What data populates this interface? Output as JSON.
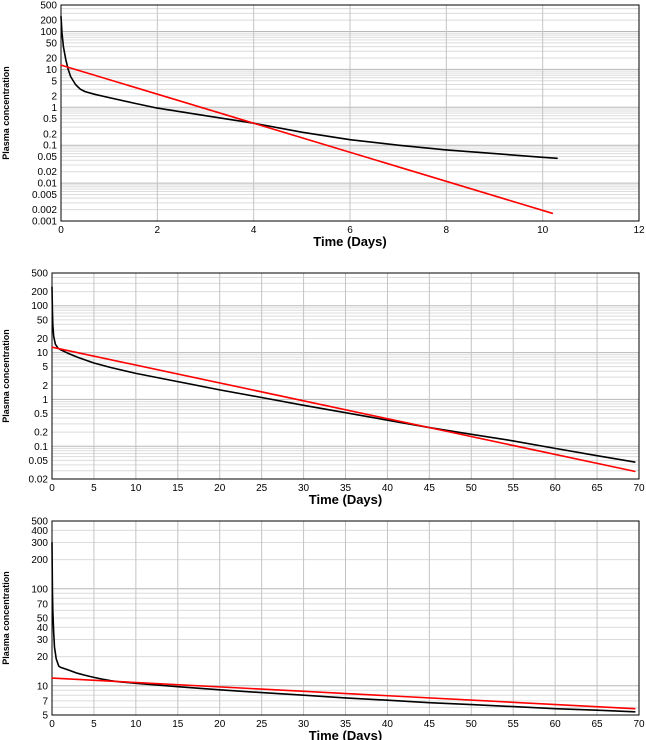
{
  "chart_data": [
    {
      "type": "line",
      "xlabel": "Time  (Days)",
      "ylabel": "Plasma concentration",
      "xlim": [
        0,
        12
      ],
      "ylim": [
        0.001,
        500
      ],
      "yscale": "log",
      "grid": true,
      "legend": "none",
      "x_ticks": [
        "0",
        "2",
        "4",
        "6",
        "8",
        "10",
        "12"
      ],
      "y_ticks": [
        "0.001",
        "0.002",
        "0.005",
        "0.01",
        "0.02",
        "0.05",
        "0.1",
        "0.2",
        "0.5",
        "1",
        "2",
        "5",
        "10",
        "20",
        "50",
        "100",
        "200",
        "500"
      ],
      "series": [
        {
          "color": "#000000",
          "x": [
            0.0,
            0.02,
            0.05,
            0.1,
            0.15,
            0.2,
            0.3,
            0.4,
            0.5,
            0.7,
            1.0,
            1.5,
            2.0,
            3.0,
            4.0,
            5.0,
            6.0,
            7.0,
            8.0,
            9.0,
            10.0,
            10.3
          ],
          "y": [
            250,
            90,
            40,
            18,
            10,
            6.5,
            4.0,
            3.0,
            2.6,
            2.2,
            1.8,
            1.3,
            0.95,
            0.6,
            0.38,
            0.22,
            0.14,
            0.1,
            0.075,
            0.06,
            0.048,
            0.045
          ]
        },
        {
          "color": "#ff0000",
          "x": [
            0.0,
            10.2
          ],
          "y": [
            13,
            0.0016
          ]
        }
      ]
    },
    {
      "type": "line",
      "xlabel": "Time  (Days)",
      "ylabel": "Plasma concentration",
      "xlim": [
        0,
        70
      ],
      "ylim": [
        0.02,
        500
      ],
      "yscale": "log",
      "grid": true,
      "legend": "none",
      "x_ticks": [
        "0",
        "5",
        "10",
        "15",
        "20",
        "25",
        "30",
        "35",
        "40",
        "45",
        "50",
        "55",
        "60",
        "65",
        "70"
      ],
      "y_ticks": [
        "0.02",
        "0.05",
        "0.1",
        "0.2",
        "0.5",
        "1",
        "2",
        "5",
        "10",
        "20",
        "50",
        "100",
        "200",
        "500"
      ],
      "series": [
        {
          "color": "#000000",
          "x": [
            0.0,
            0.05,
            0.1,
            0.2,
            0.4,
            0.7,
            1.0,
            2.0,
            3.0,
            5.0,
            7.0,
            10.0,
            15.0,
            20.0,
            25.0,
            30.0,
            35.0,
            40.0,
            45.0,
            50.0,
            55.0,
            60.0,
            65.0,
            69.5
          ],
          "y": [
            250,
            80,
            40,
            22,
            15,
            12.5,
            11.5,
            9.5,
            8.0,
            6.0,
            4.8,
            3.6,
            2.4,
            1.6,
            1.1,
            0.75,
            0.52,
            0.36,
            0.25,
            0.18,
            0.13,
            0.09,
            0.063,
            0.046
          ]
        },
        {
          "color": "#ff0000",
          "x": [
            0.0,
            69.5
          ],
          "y": [
            13,
            0.029
          ]
        }
      ]
    },
    {
      "type": "line",
      "xlabel": "Time  (Days)",
      "ylabel": "Plasma concentration",
      "xlim": [
        0,
        70
      ],
      "ylim": [
        5,
        500
      ],
      "yscale": "log",
      "grid": true,
      "legend": "none",
      "x_ticks": [
        "0",
        "5",
        "10",
        "15",
        "20",
        "25",
        "30",
        "35",
        "40",
        "45",
        "50",
        "55",
        "60",
        "65",
        "70"
      ],
      "y_ticks": [
        "5",
        "7",
        "10",
        "20",
        "30",
        "40",
        "50",
        "70",
        "100",
        "200",
        "300",
        "400",
        "500"
      ],
      "series": [
        {
          "color": "#000000",
          "x": [
            0.0,
            0.05,
            0.1,
            0.2,
            0.3,
            0.5,
            0.8,
            1.0,
            2.0,
            3.0,
            4.0,
            5.0,
            6.0,
            7.0,
            8.0,
            10.0,
            15.0,
            20.0,
            25.0,
            30.0,
            35.0,
            40.0,
            45.0,
            50.0,
            55.0,
            60.0,
            65.0,
            69.5
          ],
          "y": [
            300,
            100,
            60,
            35,
            25,
            19,
            16,
            15.5,
            14.5,
            13.5,
            12.8,
            12.2,
            11.7,
            11.3,
            11.0,
            10.6,
            9.8,
            9.1,
            8.5,
            8.0,
            7.5,
            7.1,
            6.7,
            6.4,
            6.1,
            5.8,
            5.6,
            5.4
          ]
        },
        {
          "color": "#ff0000",
          "x": [
            0.0,
            69.5
          ],
          "y": [
            12,
            5.8
          ]
        }
      ]
    }
  ]
}
